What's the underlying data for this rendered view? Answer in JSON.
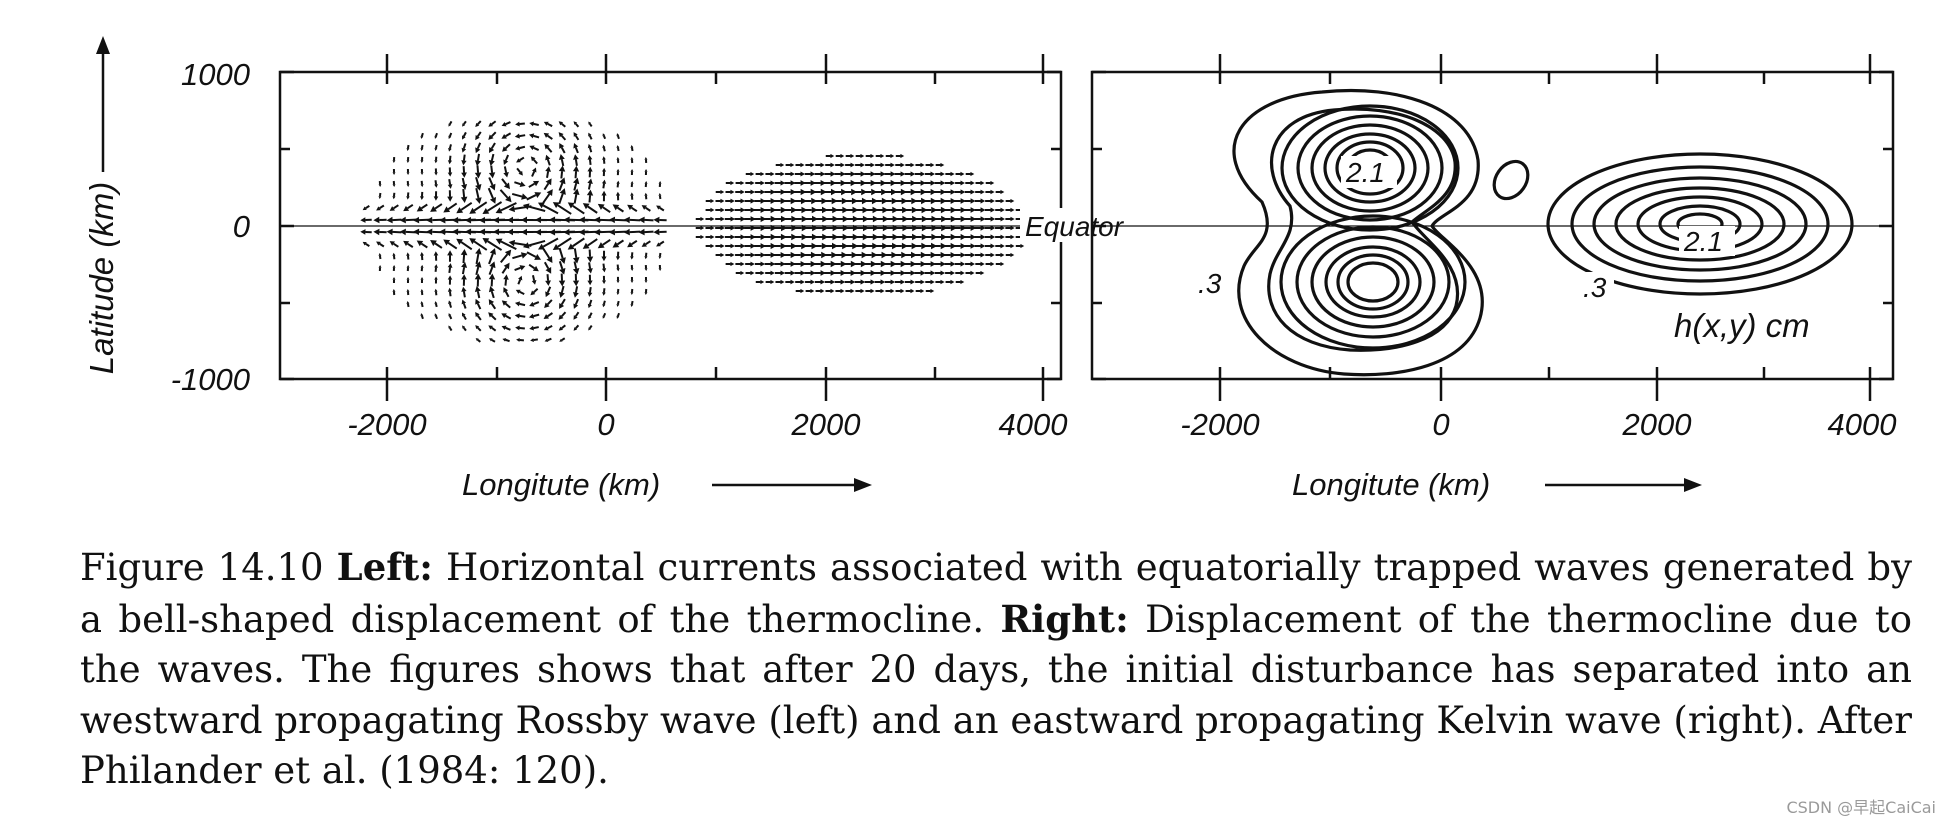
{
  "figure": {
    "y_axis": {
      "label": "Latitude (km)",
      "ticks": [
        "1000",
        "0",
        "-1000"
      ],
      "values": [
        1000,
        0,
        -1000
      ]
    },
    "left_panel": {
      "x_label": "Longitute (km)",
      "x_ticks": [
        "-2000",
        "0",
        "2000",
        "4000"
      ],
      "equator_label": "Equator",
      "content": "horizontal current vectors",
      "xlim": [
        -3000,
        4000
      ],
      "ylim": [
        -1000,
        1000
      ]
    },
    "right_panel": {
      "x_label": "Longitute (km)",
      "x_ticks": [
        "-2000",
        "0",
        "2000",
        "4000"
      ],
      "contour_labels": [
        ".3",
        "2.1",
        ".3",
        "2.1"
      ],
      "field_label": "h(x,y) cm",
      "content": "contours of thermocline displacement",
      "xlim": [
        -3000,
        4000
      ],
      "ylim": [
        -1000,
        1000
      ]
    }
  },
  "caption": {
    "lead": "Figure 14.10 ",
    "left_heading": "Left:",
    "left_text": " Horizontal currents associated with equatorially trapped waves generated by a bell-shaped displacement of the thermocline. ",
    "right_heading": "Right:",
    "right_text": " Displacement of the thermocline due to the waves. The figures shows that after 20 days, the initial disturbance has separated into an westward propagating Rossby wave (left) and an eastward propagating Kelvin wave (right). After Philander et al. (1984: 120)."
  },
  "watermark": "CSDN @早起CaiCai"
}
